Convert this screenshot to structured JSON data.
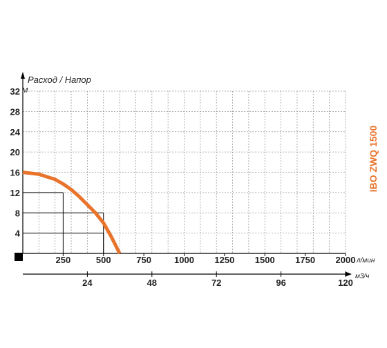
{
  "chart_data": {
    "type": "line",
    "title": "IBO ZWQ 1500",
    "ylabel": "Расход / Напор",
    "y_unit": "М",
    "y_ticks": [
      "4",
      "8",
      "12",
      "16",
      "20",
      "24",
      "28",
      "32"
    ],
    "ylim": [
      0,
      32
    ],
    "x1_unit": "л/мин",
    "x1_ticks": [
      "250",
      "500",
      "750",
      "1000",
      "1250",
      "1500",
      "1750",
      "2000"
    ],
    "xlim_lpm": [
      0,
      2000
    ],
    "x2_unit": "м3/ч",
    "x2_ticks": [
      "24",
      "48",
      "72",
      "96",
      "120"
    ],
    "grid": true,
    "series": [
      {
        "x": [
          0,
          100,
          200,
          250,
          300,
          350,
          400,
          450,
          500,
          550,
          600
        ],
        "y": [
          16,
          15.6,
          14.6,
          13.7,
          12.6,
          11.2,
          9.6,
          8,
          6,
          3.2,
          0
        ]
      }
    ],
    "markers": [
      {
        "x": 250,
        "y": 12
      },
      {
        "x": 500,
        "y": 8
      },
      {
        "x": 500,
        "y": 4
      }
    ],
    "colors": {
      "curve": "#e8742c",
      "axis": "#000000",
      "grid": "#999999"
    }
  }
}
